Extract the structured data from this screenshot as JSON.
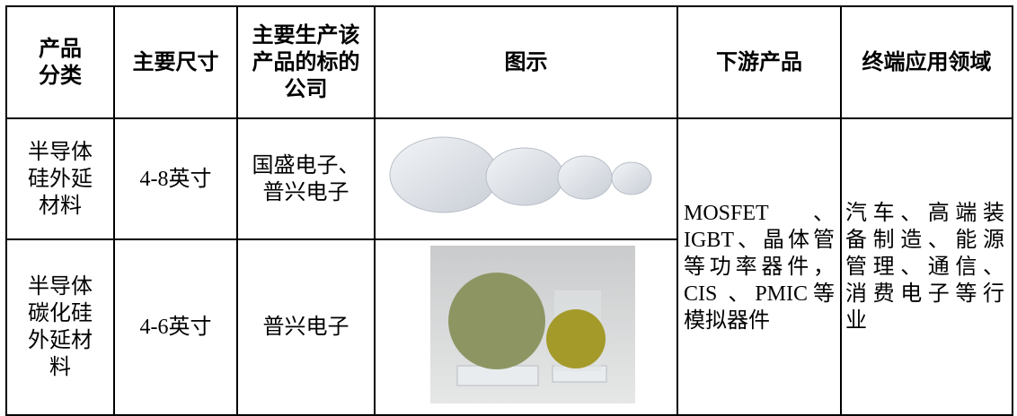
{
  "table": {
    "header": [
      "产品分类",
      "主要尺寸",
      "主要生产该产品的标的公司",
      "图示",
      "下游产品",
      "终端应用领域"
    ],
    "rows": [
      [
        "半导体硅外延材料",
        "4-8英寸",
        "国盛电子、普兴电子"
      ],
      [
        "半导体碳化硅外延材料",
        "4-6英寸",
        "普兴电子"
      ]
    ],
    "downstream": "MOSFET 、IGBT、晶体管等功率器件， CIS 、PMIC等模拟器件",
    "applications": "汽车、高端装备制造、能源管理、通信、消费电子等行业"
  }
}
